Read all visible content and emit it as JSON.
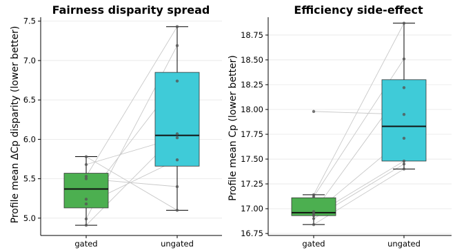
{
  "chart_data": [
    {
      "type": "box",
      "title": "Fairness disparity spread",
      "xlabel": "",
      "ylabel": "Profile mean ΔCp disparity (lower better)",
      "categories": [
        "gated",
        "ungated"
      ],
      "ylim": [
        4.78,
        7.55
      ],
      "yticks": [
        "5.0",
        "5.5",
        "6.0",
        "6.5",
        "7.0",
        "7.5"
      ],
      "grid": true,
      "box_colors": [
        "#4caf50",
        "#3fcbd8"
      ],
      "boxes": [
        {
          "name": "gated",
          "whisker_low": 4.91,
          "q1": 5.13,
          "median": 5.37,
          "q3": 5.57,
          "whisker_high": 5.78
        },
        {
          "name": "ungated",
          "whisker_low": 5.1,
          "q1": 5.66,
          "median": 6.05,
          "q3": 6.85,
          "whisker_high": 7.43
        }
      ],
      "paired_points": [
        [
          5.78,
          5.1
        ],
        [
          5.68,
          6.02
        ],
        [
          5.53,
          7.43
        ],
        [
          5.5,
          5.4
        ],
        [
          5.24,
          6.74
        ],
        [
          5.18,
          5.74
        ],
        [
          4.99,
          7.19
        ],
        [
          4.91,
          6.07
        ]
      ]
    },
    {
      "type": "box",
      "title": "Efficiency side-effect",
      "xlabel": "",
      "ylabel": "Profile mean Cp (lower better)",
      "categories": [
        "gated",
        "ungated"
      ],
      "ylim": [
        16.73,
        18.93
      ],
      "yticks": [
        "16.75",
        "17.00",
        "17.25",
        "17.50",
        "17.75",
        "18.00",
        "18.25",
        "18.50",
        "18.75"
      ],
      "grid": true,
      "box_colors": [
        "#4caf50",
        "#3fcbd8"
      ],
      "boxes": [
        {
          "name": "gated",
          "whisker_low": 16.84,
          "q1": 16.93,
          "median": 16.96,
          "q3": 17.11,
          "whisker_high": 17.14
        },
        {
          "name": "ungated",
          "whisker_low": 17.4,
          "q1": 17.48,
          "median": 17.83,
          "q3": 18.3,
          "whisker_high": 18.87
        }
      ],
      "paired_points": [
        [
          17.98,
          17.95
        ],
        [
          17.14,
          18.87
        ],
        [
          17.12,
          18.51
        ],
        [
          16.97,
          18.22
        ],
        [
          16.95,
          17.71
        ],
        [
          16.93,
          17.48
        ],
        [
          16.9,
          17.45
        ],
        [
          16.84,
          17.4
        ]
      ]
    }
  ]
}
